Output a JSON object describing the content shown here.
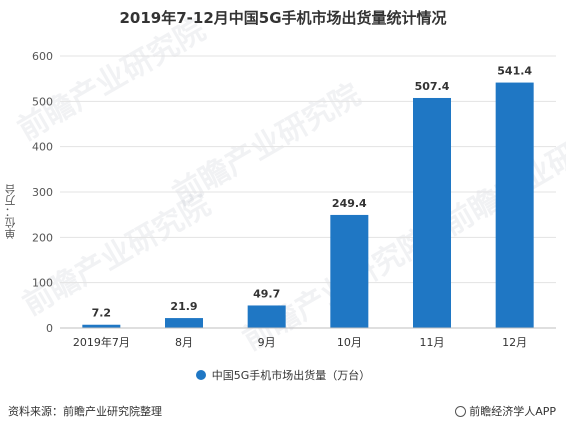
{
  "header": {
    "title": "2019年7-12月中国5G手机市场出货量统计情况"
  },
  "watermark": {
    "text": "前瞻产业研究院",
    "color": "#7a8291"
  },
  "chart_data": {
    "type": "bar",
    "title": "2019年7-12月中国5G手机市场出货量统计情况",
    "xlabel": "",
    "ylabel": "单位：万台",
    "categories": [
      "2019年7月",
      "8月",
      "9月",
      "10月",
      "11月",
      "12月"
    ],
    "series": [
      {
        "name": "中国5G手机市场出货量（万台）",
        "values": [
          7.2,
          21.9,
          49.7,
          249.4,
          507.4,
          541.4
        ]
      }
    ],
    "value_labels": [
      "7.2",
      "21.9",
      "49.7",
      "249.4",
      "507.4",
      "541.4"
    ],
    "ylim": [
      0,
      600
    ],
    "yticks": [
      0,
      100,
      200,
      300,
      400,
      500,
      600
    ],
    "ytick_labels": [
      "0",
      "100",
      "200",
      "300",
      "400",
      "500",
      "600"
    ],
    "grid": true,
    "legend_position": "bottom",
    "bar_color": "#1f77c4"
  },
  "legend": {
    "label": "中国5G手机市场出货量（万台）"
  },
  "footer": {
    "source": "资料来源：前瞻产业研究院整理",
    "brand": "前瞻经济学人APP",
    "brand_icon": "circle-logo-icon"
  }
}
